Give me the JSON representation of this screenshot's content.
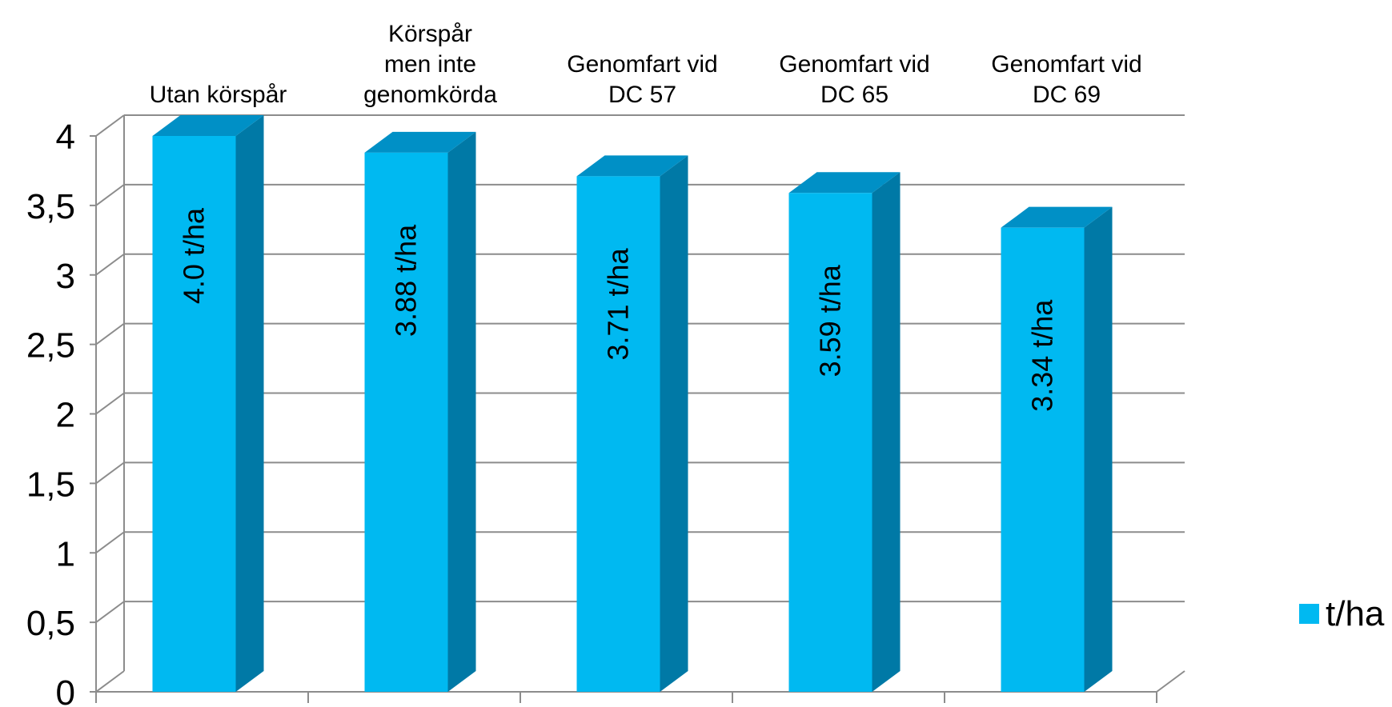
{
  "chart_data": {
    "type": "bar",
    "categories": [
      [
        "Utan körspår"
      ],
      [
        "Körspår",
        "men inte",
        "genomkörda"
      ],
      [
        "Genomfart vid",
        "DC 57"
      ],
      [
        "Genomfart vid",
        "DC 65"
      ],
      [
        "Genomfart vid",
        "DC 69"
      ]
    ],
    "series": [
      {
        "name": "t/ha",
        "values": [
          4.0,
          3.88,
          3.71,
          3.59,
          3.34
        ],
        "labels": [
          "4.0 t/ha",
          "3.88 t/ha",
          "3.71 t/ha",
          "3.59 t/ha",
          "3.34 t/ha"
        ]
      }
    ],
    "ylim": [
      0,
      4
    ],
    "yticks": [
      "0",
      "0,5",
      "1",
      "1,5",
      "2",
      "2,5",
      "3",
      "3,5",
      "4"
    ],
    "grid": true,
    "legend_position": "right",
    "colors": {
      "bar_front": "#00B9F1",
      "bar_top": "#0090C6",
      "bar_side": "#0079A6",
      "grid": "#8C8C8C"
    }
  }
}
